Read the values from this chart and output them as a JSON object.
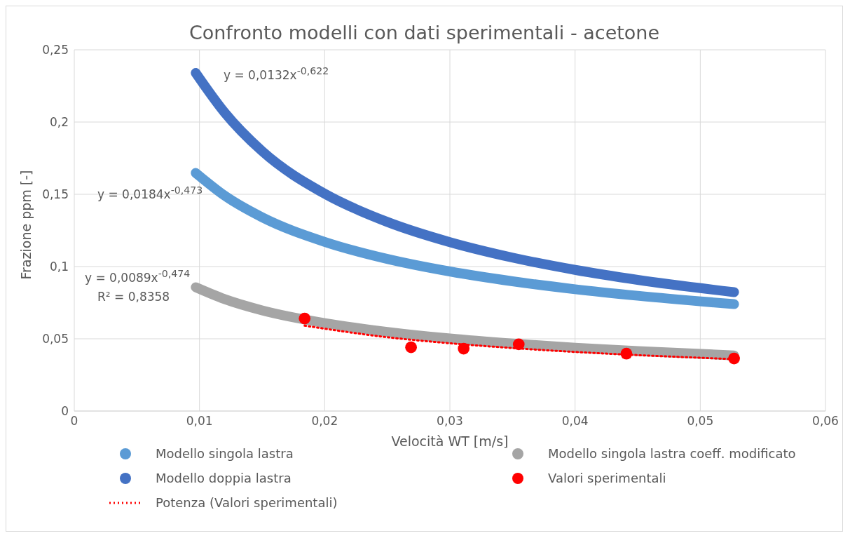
{
  "chart_data": {
    "type": "line",
    "title": "Confronto modelli con dati sperimentali - acetone",
    "xlabel": "Velocità WT [m/s]",
    "ylabel": "Frazione ppm [-]",
    "xlim": [
      0,
      0.06
    ],
    "xticks": [
      {
        "value": 0,
        "label": "0"
      },
      {
        "value": 0.01,
        "label": "0,01"
      },
      {
        "value": 0.02,
        "label": "0,02"
      },
      {
        "value": 0.03,
        "label": "0,03"
      },
      {
        "value": 0.04,
        "label": "0,04"
      },
      {
        "value": 0.05,
        "label": "0,05"
      },
      {
        "value": 0.06,
        "label": "0,06"
      }
    ],
    "ylim": [
      0,
      0.25
    ],
    "yticks": [
      {
        "value": 0,
        "label": "0"
      },
      {
        "value": 0.05,
        "label": "0,05"
      },
      {
        "value": 0.1,
        "label": "0,1"
      },
      {
        "value": 0.15,
        "label": "0,15"
      },
      {
        "value": 0.2,
        "label": "0,2"
      },
      {
        "value": 0.25,
        "label": "0,25"
      }
    ],
    "grid": true,
    "legend": "bottom",
    "series": [
      {
        "name": "Modello singola lastra",
        "color": "#5b9bd5",
        "x": [
          0.0097,
          0.012,
          0.015,
          0.02,
          0.025,
          0.03,
          0.035,
          0.04,
          0.045,
          0.0527
        ],
        "values": [
          0.1648,
          0.1491,
          0.1341,
          0.1171,
          0.1053,
          0.0966,
          0.0898,
          0.0843,
          0.0798,
          0.074
        ]
      },
      {
        "name": "Modello singola lastra coeff. modificato",
        "color": "#a5a5a5",
        "x": [
          0.0097,
          0.012,
          0.015,
          0.02,
          0.025,
          0.03,
          0.035,
          0.04,
          0.045,
          0.0527
        ],
        "values": [
          0.0857,
          0.0775,
          0.0697,
          0.0609,
          0.0548,
          0.0502,
          0.0467,
          0.0438,
          0.0415,
          0.0385
        ]
      },
      {
        "name": "Modello doppia lastra",
        "color": "#4472c4",
        "x": [
          0.0097,
          0.012,
          0.015,
          0.02,
          0.025,
          0.03,
          0.035,
          0.04,
          0.045,
          0.0527
        ],
        "values": [
          0.234,
          0.2067,
          0.1799,
          0.1504,
          0.1309,
          0.1169,
          0.1062,
          0.0977,
          0.0908,
          0.0823
        ]
      },
      {
        "name": "Valori sperimentali",
        "type": "scatter",
        "marker": "circle",
        "color": "#ff0000",
        "x": [
          0.0184,
          0.0269,
          0.0311,
          0.0355,
          0.0441,
          0.0527
        ],
        "values": [
          0.064,
          0.0441,
          0.0432,
          0.0462,
          0.0397,
          0.0364
        ]
      },
      {
        "name": "Potenza (Valori sperimentali)",
        "line_style": "dotted",
        "color": "#ff0000",
        "x": [
          0.0184,
          0.025,
          0.03,
          0.035,
          0.04,
          0.045,
          0.0527
        ],
        "values": [
          0.0591,
          0.0511,
          0.0469,
          0.0436,
          0.0409,
          0.0387,
          0.0359
        ]
      }
    ],
    "annotations": [
      "y = 0,0132x$^{-0,622}$",
      "y = 0,0184x$^{-0,473}$",
      "y = 0,0089x$^{-0,474}$",
      "R² = 0,8358"
    ]
  }
}
